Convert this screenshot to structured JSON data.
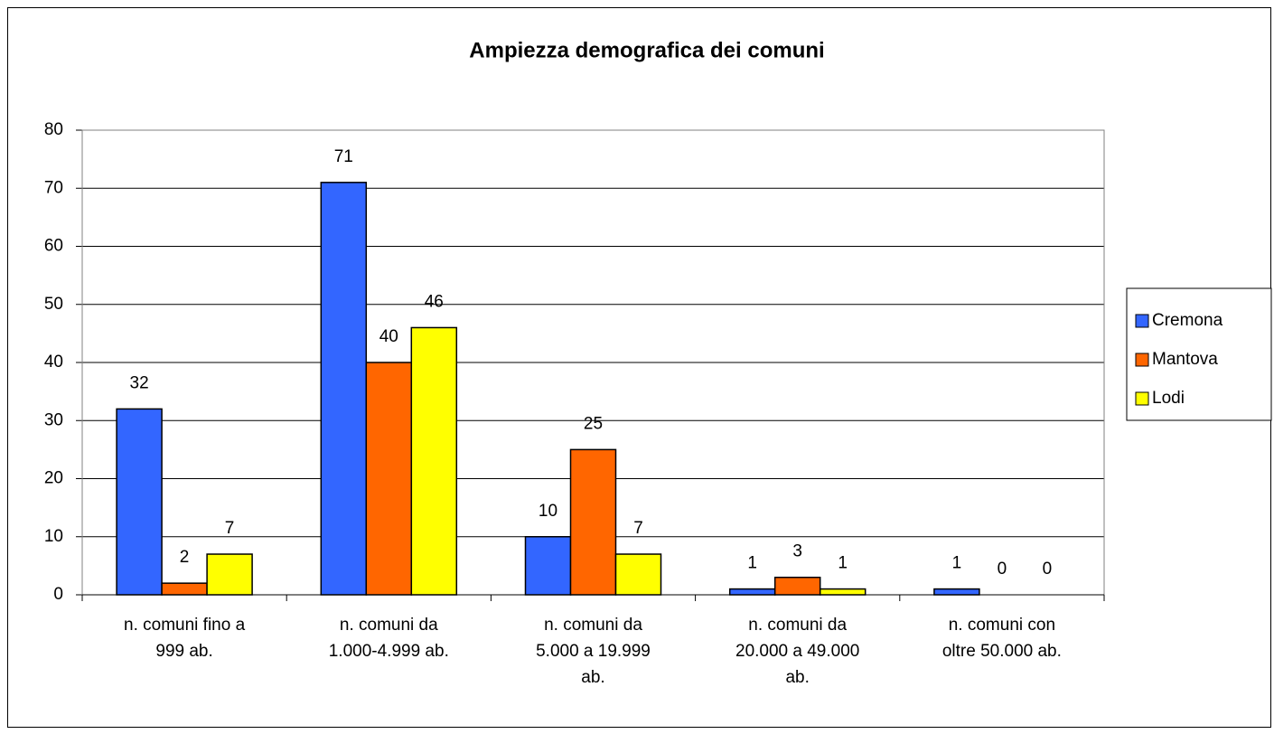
{
  "chart_data": {
    "type": "bar",
    "title": "Ampiezza demografica dei comuni",
    "categories": [
      "n. comuni fino a\n999 ab.",
      "n. comuni da\n1.000-4.999 ab.",
      "n. comuni da\n5.000 a 19.999\nab.",
      "n. comuni da\n20.000 a 49.000\nab.",
      "n. comuni con\noltre 50.000 ab."
    ],
    "series": [
      {
        "name": "Cremona",
        "color": "#3366ff",
        "values": [
          32,
          71,
          10,
          1,
          1
        ]
      },
      {
        "name": "Mantova",
        "color": "#ff6600",
        "values": [
          2,
          40,
          25,
          3,
          0
        ]
      },
      {
        "name": "Lodi",
        "color": "#ffff00",
        "values": [
          7,
          46,
          7,
          1,
          0
        ]
      }
    ],
    "ylim": [
      0,
      80
    ],
    "yticks": [
      0,
      10,
      20,
      30,
      40,
      50,
      60,
      70,
      80
    ],
    "grid": true,
    "legend": "right"
  }
}
